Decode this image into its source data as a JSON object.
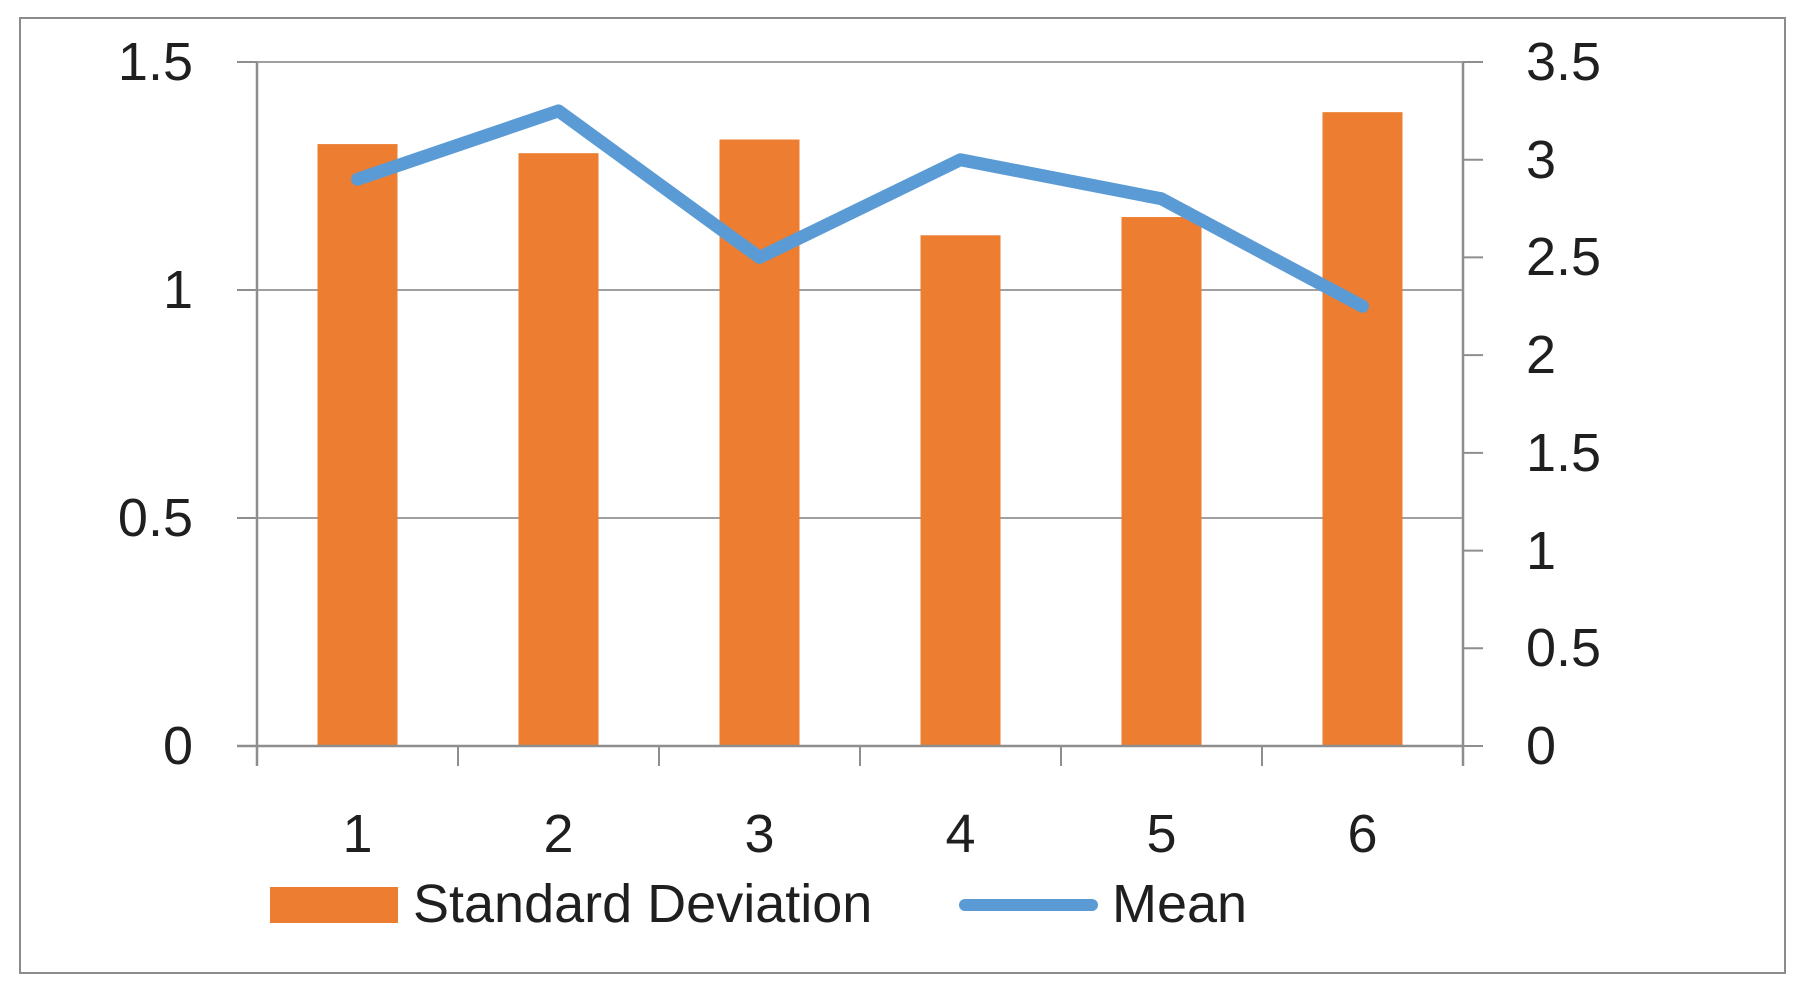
{
  "chart_data": {
    "type": "combo",
    "subtype": "bar+line, dual y-axes",
    "categories": [
      "1",
      "2",
      "3",
      "4",
      "5",
      "6"
    ],
    "series": [
      {
        "name": "Standard Deviation",
        "type": "bar",
        "axis": "left",
        "color": "#ED7D31",
        "values": [
          1.32,
          1.3,
          1.33,
          1.12,
          1.16,
          1.39
        ]
      },
      {
        "name": "Mean",
        "type": "line",
        "axis": "right",
        "color": "#5B9BD5",
        "values": [
          2.9,
          3.25,
          2.5,
          3.0,
          2.8,
          2.25
        ]
      }
    ],
    "left_axis": {
      "min": 0,
      "max": 1.5,
      "tick_values": [
        0,
        0.5,
        1,
        1.5
      ],
      "tick_labels": [
        "0",
        "0.5",
        "1",
        "1.5"
      ]
    },
    "right_axis": {
      "min": 0,
      "max": 3.5,
      "tick_values": [
        0,
        0.5,
        1,
        1.5,
        2,
        2.5,
        3,
        3.5
      ],
      "tick_labels": [
        "0",
        "0.5",
        "1",
        "1.5",
        "2",
        "2.5",
        "3",
        "3.5"
      ]
    },
    "title": "",
    "xlabel": "",
    "ylabel": "",
    "grid": "horizontal gridlines at left-axis 0.5 steps",
    "legend_position": "bottom"
  },
  "legend": {
    "series1_label": "Standard Deviation",
    "series2_label": "Mean"
  },
  "colors": {
    "bar_fill": "#ED7D31",
    "line_stroke": "#5B9BD5",
    "gridline": "#A0A0A0",
    "axis": "#8E8E8E",
    "text": "#1F1F1F",
    "border": "#8C8C8C",
    "background": "#FFFFFF"
  }
}
